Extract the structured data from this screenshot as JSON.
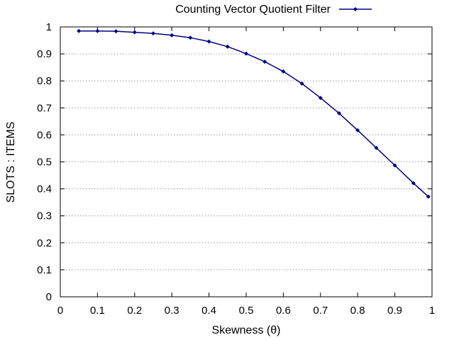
{
  "chart_data": {
    "type": "line",
    "xlabel": "Skewness (θ)",
    "ylabel": "SLOTS : ITEMS",
    "xlim": [
      0,
      1
    ],
    "ylim": [
      0,
      1
    ],
    "xticks": [
      "0",
      "0.1",
      "0.2",
      "0.3",
      "0.4",
      "0.5",
      "0.6",
      "0.7",
      "0.8",
      "0.9",
      "1"
    ],
    "yticks": [
      "0",
      "0.1",
      "0.2",
      "0.3",
      "0.4",
      "0.5",
      "0.6",
      "0.7",
      "0.8",
      "0.9",
      "1"
    ],
    "grid": "horizontal-dotted",
    "legend_position": "top-right-outside",
    "series": [
      {
        "name": "Counting Vector Quotient Filter",
        "color": "#000080",
        "marker": "diamond",
        "x": [
          0.05,
          0.1,
          0.15,
          0.2,
          0.25,
          0.3,
          0.35,
          0.4,
          0.45,
          0.5,
          0.55,
          0.6,
          0.65,
          0.7,
          0.75,
          0.8,
          0.85,
          0.9,
          0.95,
          0.99
        ],
        "y": [
          0.985,
          0.985,
          0.984,
          0.98,
          0.976,
          0.969,
          0.96,
          0.946,
          0.927,
          0.901,
          0.871,
          0.835,
          0.79,
          0.737,
          0.68,
          0.617,
          0.552,
          0.487,
          0.421,
          0.371
        ]
      }
    ]
  }
}
